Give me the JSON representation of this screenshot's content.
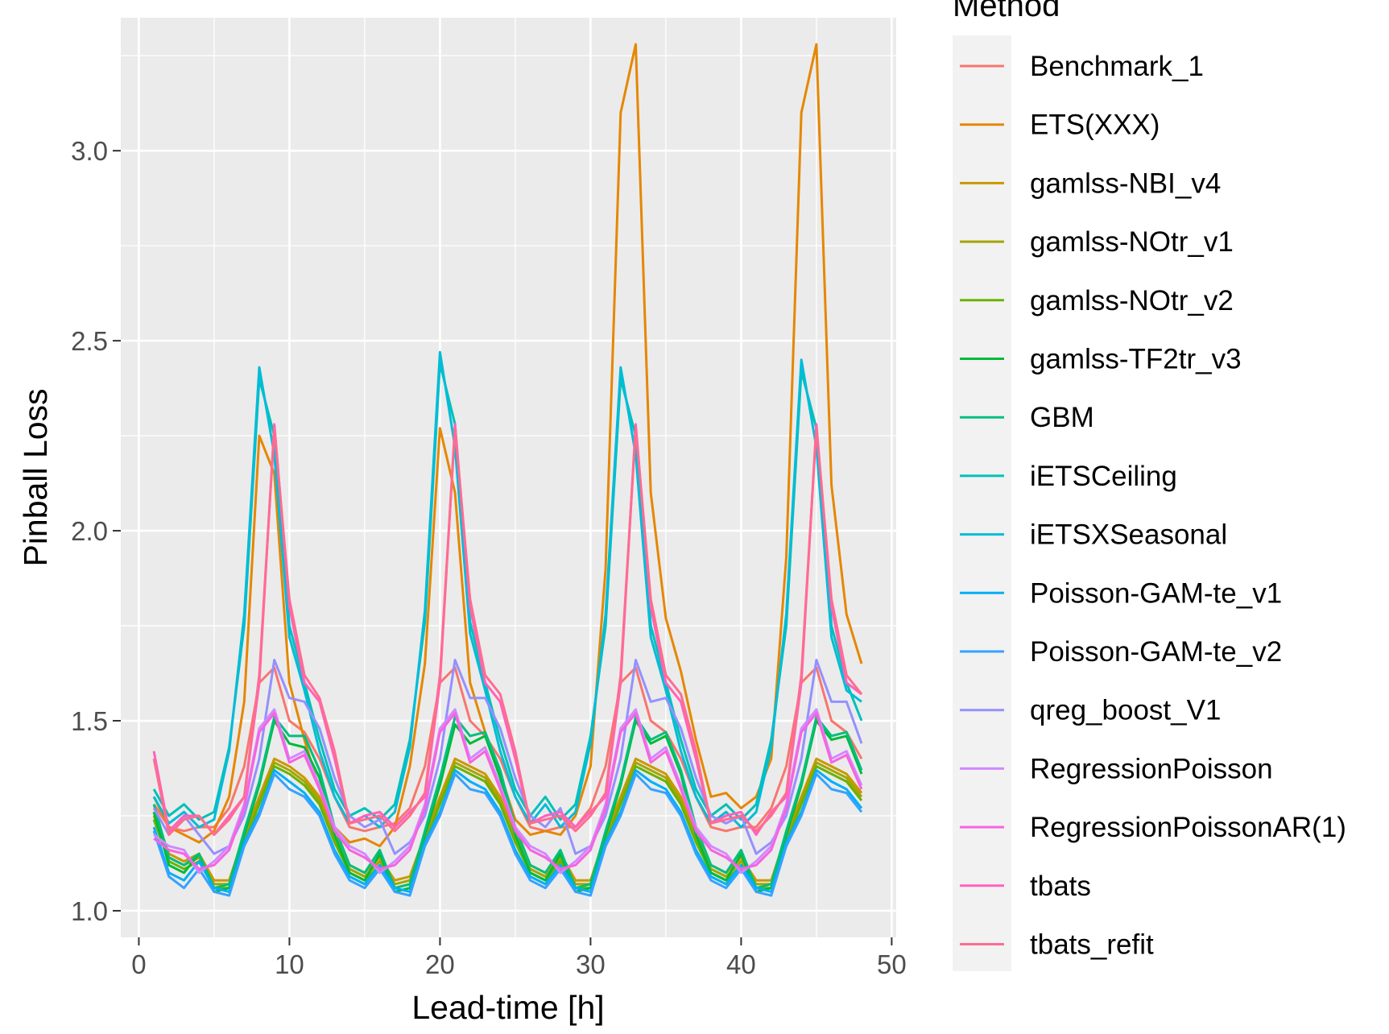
{
  "chart_data": {
    "type": "line",
    "title": "",
    "xlabel": "Lead-time [h]",
    "ylabel": "Pinball Loss",
    "xlim": [
      -1.2,
      50.3
    ],
    "ylim": [
      0.93,
      3.35
    ],
    "xticks": [
      0,
      10,
      20,
      30,
      40,
      50
    ],
    "yticks": [
      1.0,
      1.5,
      2.0,
      2.5,
      3.0
    ],
    "ytick_labels": [
      "1.0",
      "1.5",
      "2.0",
      "2.5",
      "3.0"
    ],
    "grid": true,
    "legend": {
      "title": "Method",
      "position": "right"
    },
    "x": [
      1,
      2,
      3,
      4,
      5,
      6,
      7,
      8,
      9,
      10,
      11,
      12,
      13,
      14,
      15,
      16,
      17,
      18,
      19,
      20,
      21,
      22,
      23,
      24,
      25,
      26,
      27,
      28,
      29,
      30,
      31,
      32,
      33,
      34,
      35,
      36,
      37,
      38,
      39,
      40,
      41,
      42,
      43,
      44,
      45,
      46,
      47,
      48
    ],
    "series": [
      {
        "name": "Benchmark_1",
        "color": "#F8766D",
        "values": [
          1.28,
          1.22,
          1.21,
          1.22,
          1.22,
          1.27,
          1.38,
          1.6,
          1.64,
          1.5,
          1.47,
          1.4,
          1.3,
          1.22,
          1.21,
          1.22,
          1.23,
          1.27,
          1.38,
          1.6,
          1.64,
          1.5,
          1.46,
          1.4,
          1.3,
          1.22,
          1.21,
          1.22,
          1.22,
          1.27,
          1.38,
          1.6,
          1.64,
          1.5,
          1.47,
          1.4,
          1.3,
          1.22,
          1.21,
          1.22,
          1.22,
          1.27,
          1.38,
          1.6,
          1.64,
          1.5,
          1.47,
          1.4
        ]
      },
      {
        "name": "ETS(XXX)",
        "color": "#E58700",
        "values": [
          1.3,
          1.22,
          1.2,
          1.18,
          1.21,
          1.3,
          1.55,
          2.25,
          2.15,
          1.6,
          1.45,
          1.32,
          1.22,
          1.18,
          1.19,
          1.17,
          1.22,
          1.38,
          1.65,
          2.27,
          2.1,
          1.6,
          1.47,
          1.36,
          1.24,
          1.2,
          1.21,
          1.2,
          1.25,
          1.38,
          1.9,
          3.1,
          3.28,
          2.1,
          1.77,
          1.63,
          1.45,
          1.3,
          1.31,
          1.27,
          1.3,
          1.4,
          1.93,
          3.1,
          3.28,
          2.12,
          1.78,
          1.65
        ]
      },
      {
        "name": "gamlss-NBI_v4",
        "color": "#C99800",
        "values": [
          1.26,
          1.15,
          1.13,
          1.15,
          1.08,
          1.08,
          1.2,
          1.3,
          1.4,
          1.38,
          1.35,
          1.3,
          1.2,
          1.12,
          1.1,
          1.14,
          1.08,
          1.09,
          1.2,
          1.3,
          1.4,
          1.38,
          1.36,
          1.3,
          1.2,
          1.12,
          1.1,
          1.15,
          1.08,
          1.08,
          1.2,
          1.3,
          1.4,
          1.38,
          1.36,
          1.3,
          1.2,
          1.12,
          1.1,
          1.14,
          1.08,
          1.08,
          1.2,
          1.3,
          1.4,
          1.38,
          1.36,
          1.31
        ]
      },
      {
        "name": "gamlss-NOtr_v1",
        "color": "#A3A500",
        "values": [
          1.25,
          1.14,
          1.12,
          1.14,
          1.07,
          1.07,
          1.19,
          1.29,
          1.39,
          1.37,
          1.34,
          1.29,
          1.19,
          1.11,
          1.09,
          1.13,
          1.07,
          1.08,
          1.19,
          1.29,
          1.39,
          1.37,
          1.35,
          1.29,
          1.19,
          1.11,
          1.09,
          1.14,
          1.07,
          1.07,
          1.19,
          1.29,
          1.39,
          1.37,
          1.35,
          1.29,
          1.19,
          1.11,
          1.09,
          1.13,
          1.07,
          1.07,
          1.19,
          1.29,
          1.39,
          1.37,
          1.35,
          1.3
        ]
      },
      {
        "name": "gamlss-NOtr_v2",
        "color": "#6BB100",
        "values": [
          1.24,
          1.13,
          1.11,
          1.13,
          1.06,
          1.06,
          1.18,
          1.28,
          1.38,
          1.36,
          1.33,
          1.28,
          1.18,
          1.1,
          1.08,
          1.12,
          1.06,
          1.07,
          1.18,
          1.28,
          1.38,
          1.36,
          1.34,
          1.28,
          1.18,
          1.1,
          1.08,
          1.13,
          1.06,
          1.06,
          1.18,
          1.28,
          1.38,
          1.36,
          1.34,
          1.28,
          1.18,
          1.1,
          1.08,
          1.12,
          1.06,
          1.06,
          1.18,
          1.28,
          1.38,
          1.36,
          1.34,
          1.29
        ]
      },
      {
        "name": "gamlss-TF2tr_v3",
        "color": "#00BA38",
        "values": [
          1.26,
          1.12,
          1.1,
          1.15,
          1.05,
          1.06,
          1.2,
          1.33,
          1.5,
          1.44,
          1.43,
          1.35,
          1.2,
          1.1,
          1.08,
          1.15,
          1.05,
          1.06,
          1.2,
          1.33,
          1.49,
          1.44,
          1.46,
          1.35,
          1.2,
          1.1,
          1.08,
          1.15,
          1.05,
          1.06,
          1.2,
          1.33,
          1.5,
          1.44,
          1.46,
          1.36,
          1.2,
          1.1,
          1.08,
          1.15,
          1.05,
          1.06,
          1.2,
          1.33,
          1.5,
          1.45,
          1.46,
          1.36
        ]
      },
      {
        "name": "GBM",
        "color": "#00BF7D",
        "values": [
          1.28,
          1.14,
          1.12,
          1.15,
          1.06,
          1.07,
          1.21,
          1.34,
          1.51,
          1.46,
          1.46,
          1.37,
          1.22,
          1.12,
          1.1,
          1.16,
          1.06,
          1.07,
          1.21,
          1.35,
          1.51,
          1.46,
          1.47,
          1.37,
          1.22,
          1.12,
          1.1,
          1.16,
          1.06,
          1.07,
          1.21,
          1.34,
          1.51,
          1.45,
          1.47,
          1.37,
          1.22,
          1.12,
          1.1,
          1.16,
          1.06,
          1.07,
          1.21,
          1.34,
          1.51,
          1.46,
          1.47,
          1.37
        ]
      },
      {
        "name": "iETSCeiling",
        "color": "#00C0B8",
        "values": [
          1.32,
          1.25,
          1.28,
          1.24,
          1.26,
          1.43,
          1.75,
          2.4,
          2.25,
          1.75,
          1.6,
          1.45,
          1.32,
          1.25,
          1.27,
          1.24,
          1.28,
          1.45,
          1.76,
          2.44,
          2.28,
          1.76,
          1.6,
          1.45,
          1.32,
          1.25,
          1.3,
          1.24,
          1.28,
          1.46,
          1.75,
          2.4,
          2.25,
          1.75,
          1.6,
          1.45,
          1.32,
          1.25,
          1.28,
          1.24,
          1.28,
          1.45,
          1.75,
          2.42,
          2.27,
          1.75,
          1.6,
          1.5
        ]
      },
      {
        "name": "iETSXSeasonal",
        "color": "#00BCD8",
        "values": [
          1.3,
          1.23,
          1.26,
          1.22,
          1.24,
          1.42,
          1.78,
          2.43,
          2.2,
          1.72,
          1.58,
          1.42,
          1.3,
          1.23,
          1.25,
          1.22,
          1.26,
          1.43,
          1.79,
          2.47,
          2.22,
          1.73,
          1.58,
          1.42,
          1.3,
          1.23,
          1.28,
          1.22,
          1.26,
          1.44,
          1.78,
          2.43,
          2.2,
          1.72,
          1.58,
          1.42,
          1.3,
          1.23,
          1.26,
          1.22,
          1.26,
          1.43,
          1.78,
          2.45,
          2.22,
          1.72,
          1.58,
          1.55
        ]
      },
      {
        "name": "Poisson-GAM-te_v1",
        "color": "#00B0F6",
        "values": [
          1.22,
          1.1,
          1.08,
          1.13,
          1.06,
          1.05,
          1.18,
          1.26,
          1.37,
          1.34,
          1.31,
          1.26,
          1.16,
          1.09,
          1.07,
          1.12,
          1.06,
          1.05,
          1.18,
          1.26,
          1.37,
          1.34,
          1.32,
          1.26,
          1.16,
          1.09,
          1.07,
          1.12,
          1.06,
          1.05,
          1.18,
          1.26,
          1.37,
          1.34,
          1.32,
          1.26,
          1.16,
          1.09,
          1.07,
          1.12,
          1.06,
          1.05,
          1.18,
          1.26,
          1.37,
          1.34,
          1.32,
          1.27
        ]
      },
      {
        "name": "Poisson-GAM-te_v2",
        "color": "#35A2FF",
        "values": [
          1.21,
          1.09,
          1.06,
          1.11,
          1.05,
          1.04,
          1.17,
          1.25,
          1.36,
          1.32,
          1.3,
          1.25,
          1.15,
          1.08,
          1.06,
          1.11,
          1.05,
          1.04,
          1.17,
          1.25,
          1.36,
          1.32,
          1.31,
          1.25,
          1.15,
          1.08,
          1.06,
          1.11,
          1.05,
          1.04,
          1.17,
          1.25,
          1.36,
          1.32,
          1.31,
          1.25,
          1.15,
          1.08,
          1.06,
          1.11,
          1.05,
          1.04,
          1.17,
          1.25,
          1.36,
          1.32,
          1.31,
          1.26
        ]
      },
      {
        "name": "qreg_boost_V1",
        "color": "#9590FF",
        "values": [
          1.27,
          1.2,
          1.25,
          1.2,
          1.15,
          1.17,
          1.25,
          1.4,
          1.66,
          1.56,
          1.55,
          1.48,
          1.35,
          1.25,
          1.22,
          1.24,
          1.15,
          1.18,
          1.25,
          1.4,
          1.66,
          1.56,
          1.56,
          1.48,
          1.35,
          1.25,
          1.22,
          1.27,
          1.15,
          1.17,
          1.25,
          1.4,
          1.66,
          1.55,
          1.56,
          1.48,
          1.35,
          1.25,
          1.23,
          1.25,
          1.15,
          1.18,
          1.25,
          1.4,
          1.66,
          1.55,
          1.55,
          1.44
        ]
      },
      {
        "name": "RegressionPoisson",
        "color": "#D089FF",
        "values": [
          1.2,
          1.17,
          1.16,
          1.1,
          1.13,
          1.17,
          1.28,
          1.48,
          1.53,
          1.4,
          1.42,
          1.33,
          1.22,
          1.17,
          1.15,
          1.1,
          1.13,
          1.17,
          1.28,
          1.48,
          1.53,
          1.4,
          1.43,
          1.33,
          1.22,
          1.17,
          1.15,
          1.1,
          1.13,
          1.17,
          1.28,
          1.48,
          1.53,
          1.4,
          1.43,
          1.33,
          1.22,
          1.17,
          1.15,
          1.1,
          1.13,
          1.17,
          1.28,
          1.48,
          1.53,
          1.4,
          1.42,
          1.33
        ]
      },
      {
        "name": "RegressionPoissonAR(1)",
        "color": "#F763E0",
        "values": [
          1.19,
          1.16,
          1.15,
          1.11,
          1.12,
          1.16,
          1.27,
          1.47,
          1.52,
          1.39,
          1.41,
          1.32,
          1.21,
          1.16,
          1.14,
          1.11,
          1.12,
          1.16,
          1.27,
          1.47,
          1.52,
          1.39,
          1.42,
          1.32,
          1.21,
          1.16,
          1.14,
          1.11,
          1.12,
          1.16,
          1.27,
          1.47,
          1.52,
          1.39,
          1.42,
          1.32,
          1.21,
          1.16,
          1.14,
          1.11,
          1.12,
          1.16,
          1.27,
          1.47,
          1.52,
          1.39,
          1.41,
          1.32
        ]
      },
      {
        "name": "tbats",
        "color": "#FF62BC",
        "values": [
          1.42,
          1.21,
          1.25,
          1.25,
          1.2,
          1.25,
          1.3,
          1.6,
          2.28,
          1.8,
          1.6,
          1.55,
          1.4,
          1.23,
          1.25,
          1.26,
          1.22,
          1.26,
          1.3,
          1.6,
          2.28,
          1.8,
          1.6,
          1.55,
          1.4,
          1.23,
          1.25,
          1.26,
          1.22,
          1.26,
          1.3,
          1.6,
          2.28,
          1.8,
          1.6,
          1.55,
          1.4,
          1.23,
          1.25,
          1.26,
          1.2,
          1.26,
          1.3,
          1.6,
          2.28,
          1.8,
          1.6,
          1.57
        ]
      },
      {
        "name": "tbats_refit",
        "color": "#FF6C91",
        "values": [
          1.4,
          1.2,
          1.24,
          1.25,
          1.2,
          1.24,
          1.3,
          1.62,
          2.27,
          1.82,
          1.62,
          1.56,
          1.42,
          1.23,
          1.24,
          1.25,
          1.21,
          1.25,
          1.31,
          1.62,
          2.27,
          1.82,
          1.62,
          1.57,
          1.42,
          1.23,
          1.24,
          1.25,
          1.21,
          1.25,
          1.31,
          1.62,
          2.27,
          1.82,
          1.62,
          1.57,
          1.42,
          1.23,
          1.24,
          1.25,
          1.21,
          1.25,
          1.31,
          1.62,
          2.27,
          1.82,
          1.62,
          1.57
        ]
      }
    ]
  }
}
